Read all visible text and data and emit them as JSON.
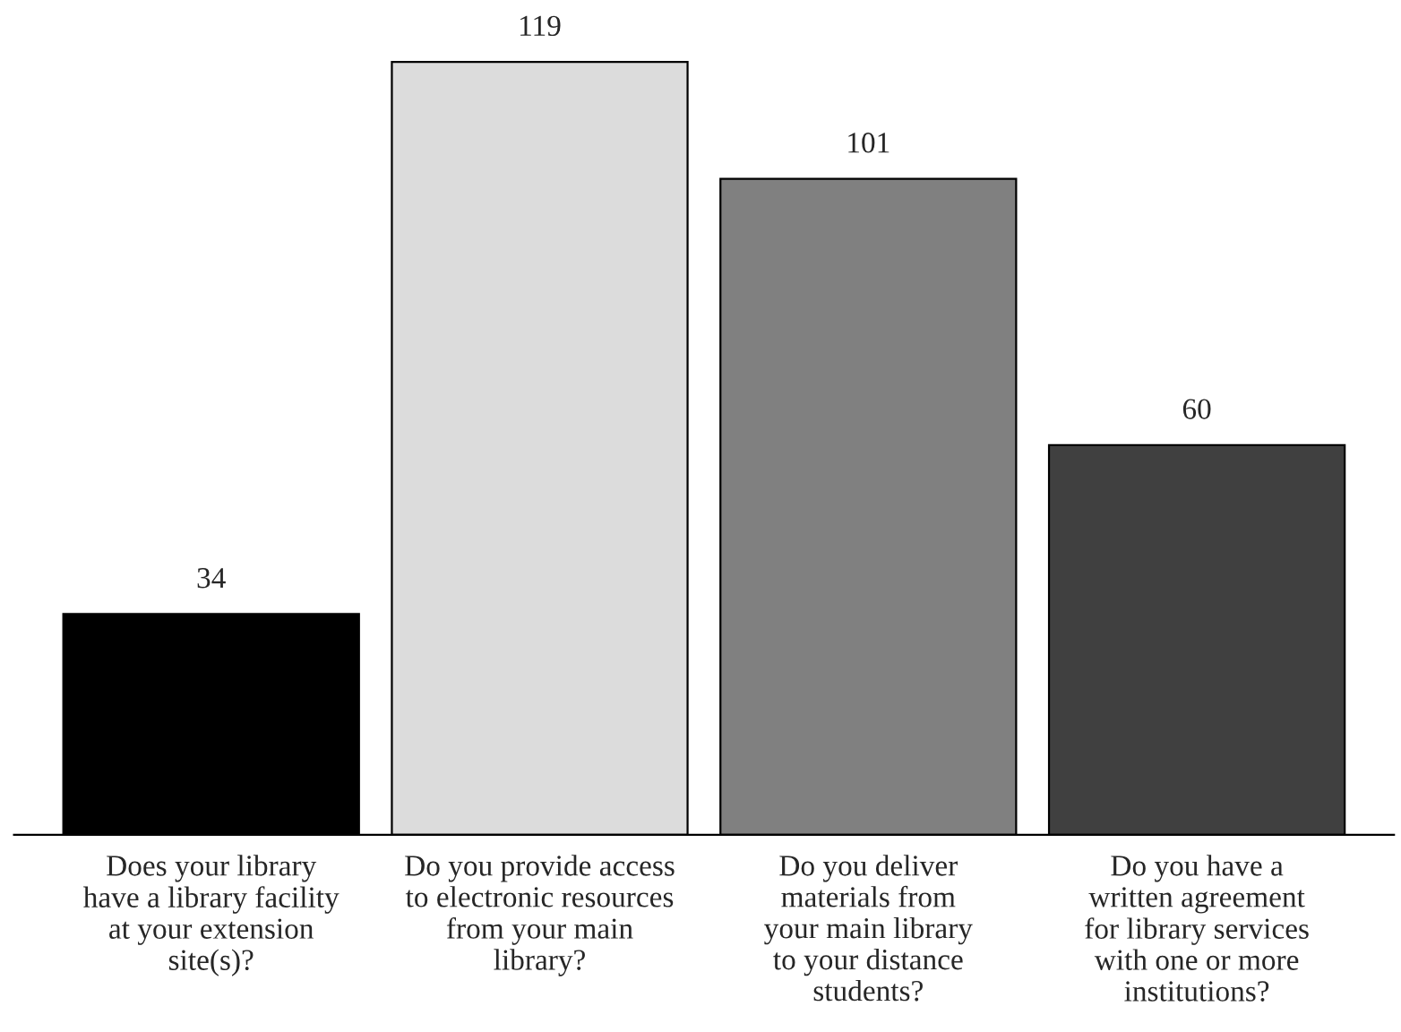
{
  "chart_data": {
    "type": "bar",
    "categories": [
      "Does your library\nhave a library facility\nat your extension\nsite(s)?",
      "Do you provide access\nto electronic resources\nfrom your main\nlibrary?",
      "Do you deliver\nmaterials from\nyour main library\nto your distance\nstudents?",
      "Do you have a\nwritten agreement\nfor library services\nwith one or more\ninstitutions?"
    ],
    "values": [
      34,
      119,
      101,
      60
    ],
    "colors": [
      "#000000",
      "#dcdcdc",
      "#808080",
      "#404040"
    ],
    "data_labels": true,
    "grid": false,
    "legend": false
  }
}
